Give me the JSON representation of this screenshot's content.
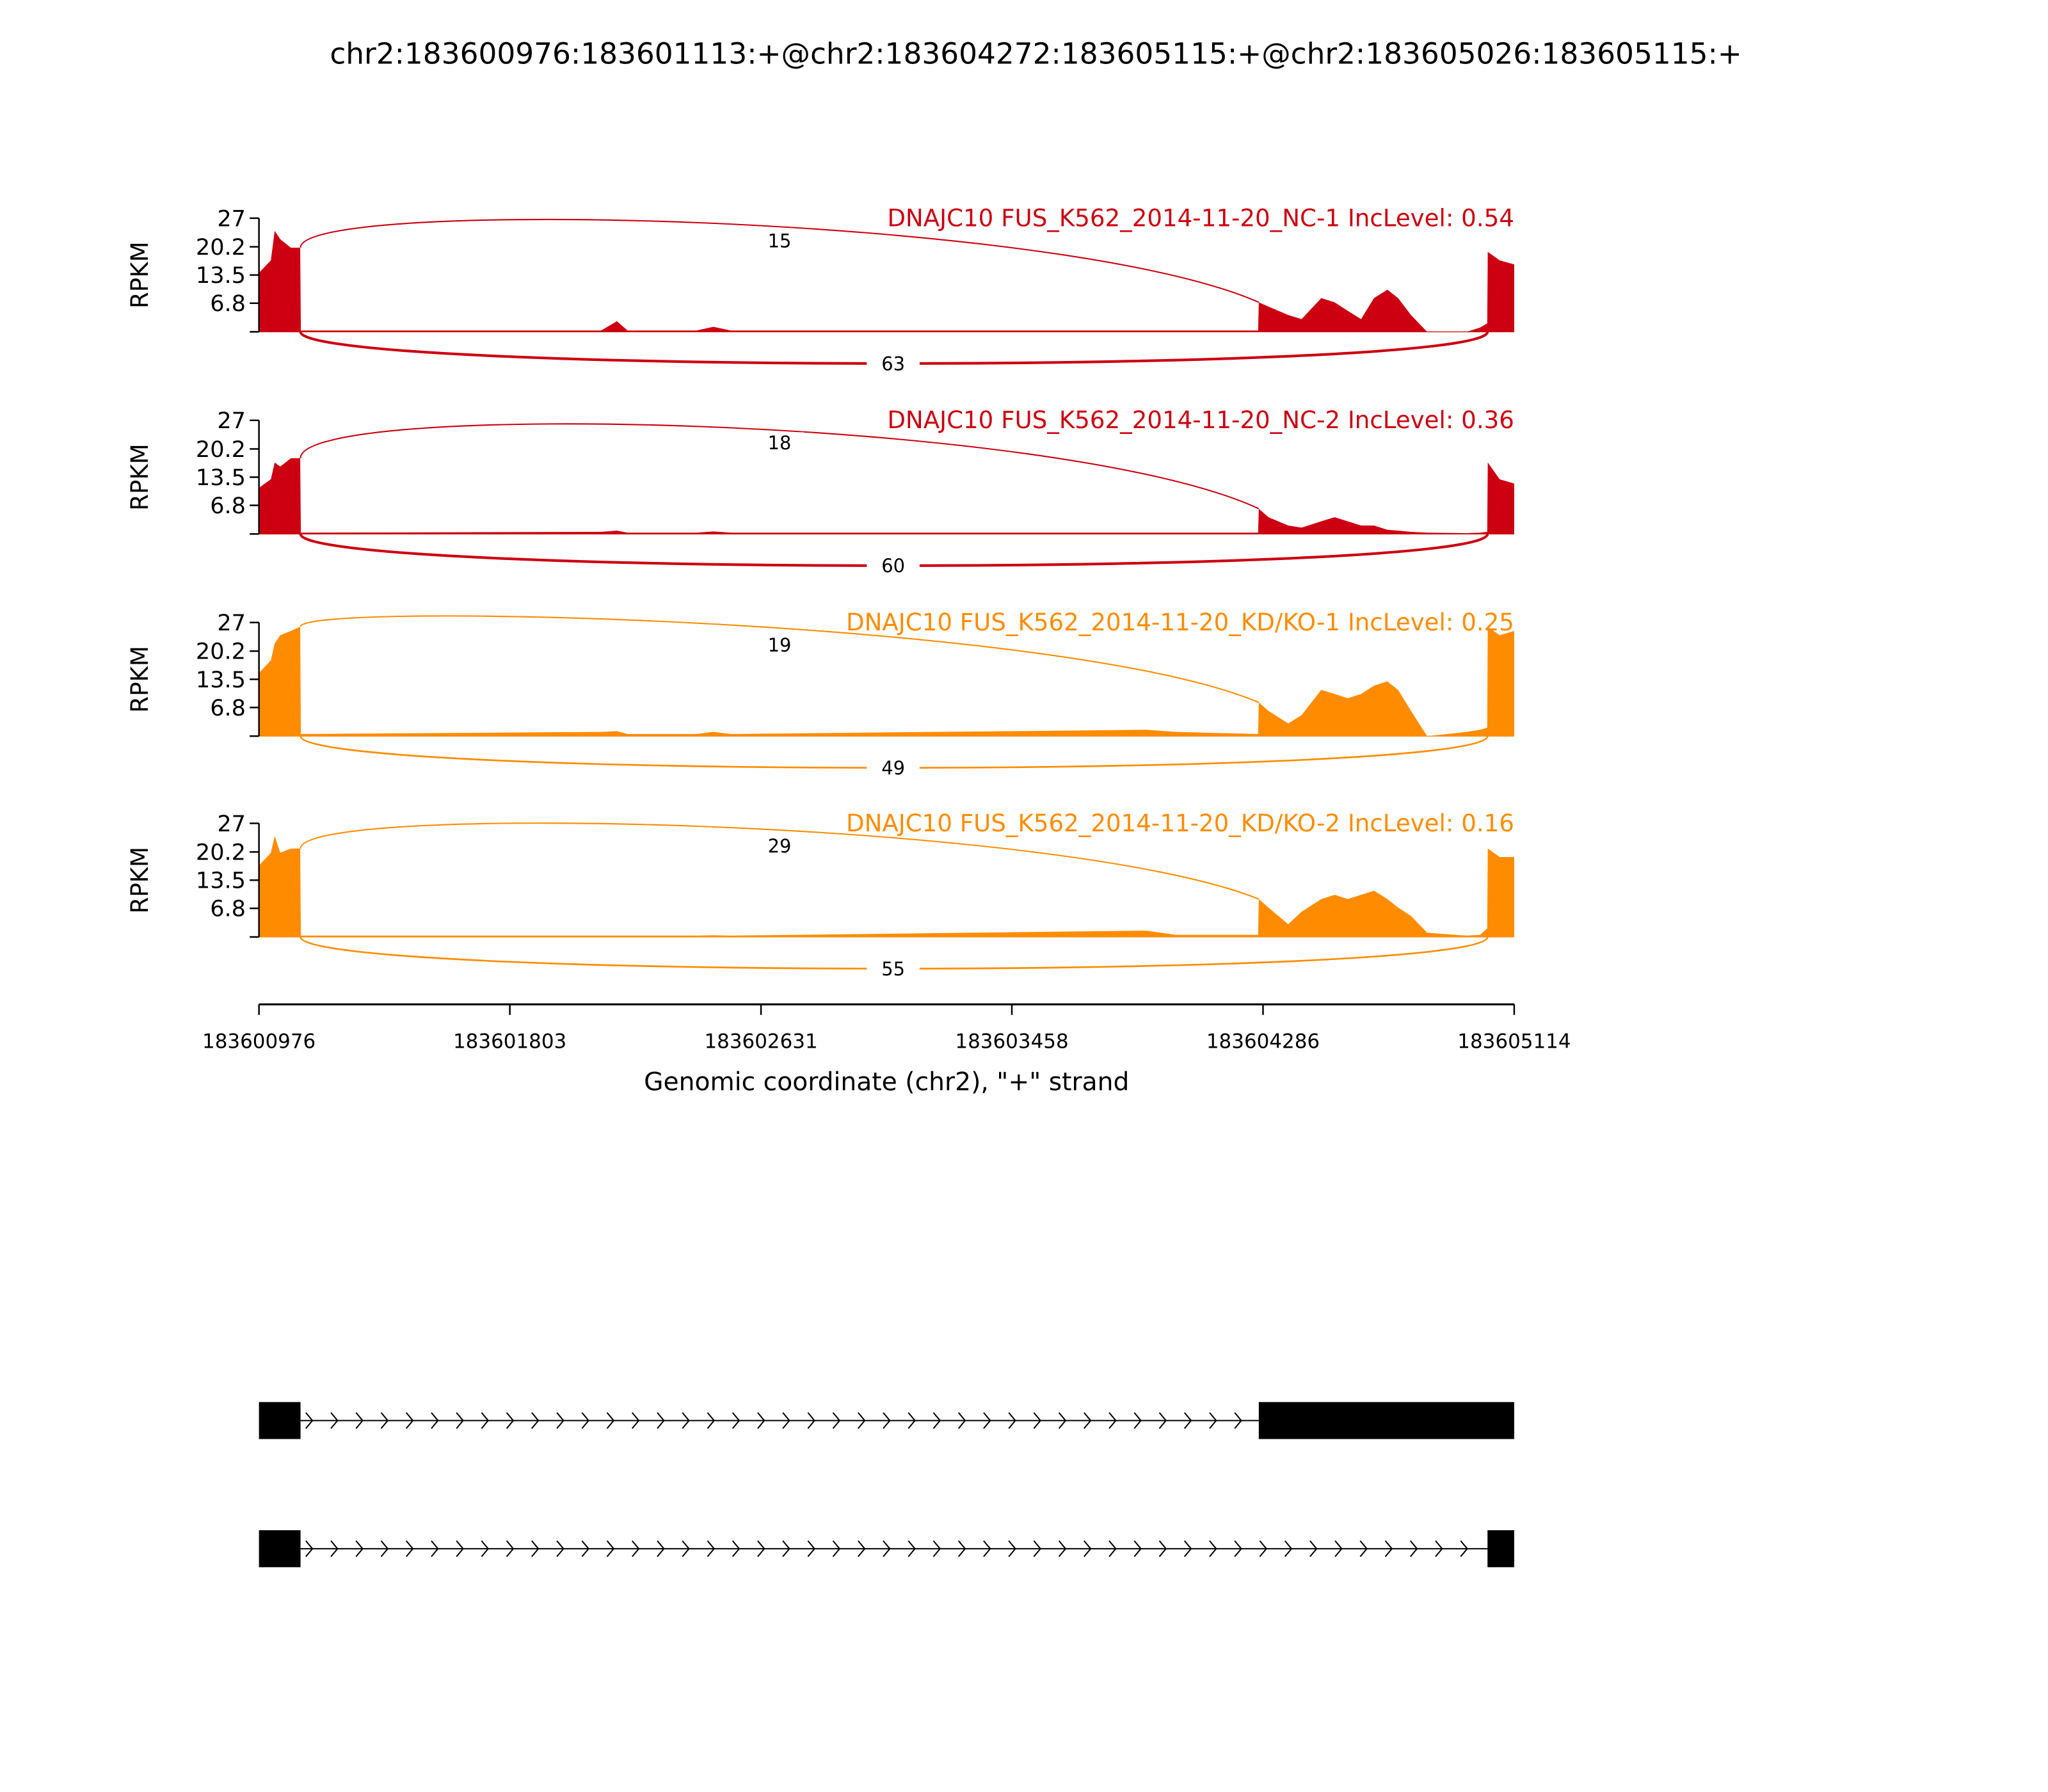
{
  "chart_data": {
    "type": "area",
    "title": "chr2:183600976:183601113:+@chr2:183604272:183605115:+@chr2:183605026:183605115:+",
    "xlabel": "Genomic coordinate (chr2), \"+\" strand",
    "ylabel": "RPKM",
    "xlim": [
      183600976,
      183605114
    ],
    "ylim": [
      0,
      27
    ],
    "yticks": [
      "6.8",
      "13.5",
      "20.2",
      "27"
    ],
    "ytick_values": [
      6.8,
      13.5,
      20.2,
      27
    ],
    "xticks": [
      "183600976",
      "183601803",
      "183602631",
      "183603458",
      "183604286",
      "183605114"
    ],
    "xtick_values": [
      183600976,
      183601803,
      183602631,
      183603458,
      183604286,
      183605114
    ],
    "exons": {
      "upstream": [
        183600976,
        183601113
      ],
      "target": [
        183604272,
        183605115
      ],
      "downstream": [
        183605026,
        183605115
      ]
    },
    "coverage_positions": [
      183600976,
      183601015,
      183601028,
      183601046,
      183601081,
      183601112,
      183601114,
      183602104,
      183602156,
      183602191,
      183602418,
      183602474,
      183602531,
      183603900,
      183604000,
      183604270,
      183604272,
      183604304,
      183604369,
      183604413,
      183604478,
      183604522,
      183604565,
      183604609,
      183604652,
      183604696,
      183604731,
      183604774,
      183604827,
      183604957,
      183605001,
      183605025,
      183605027,
      183605066,
      183605114
    ],
    "series": [
      {
        "name": "DNAJC10 FUS_K562_2014-11-20_NC-1 IncLevel: 0.54",
        "color": "#CC0011",
        "coverage": [
          14,
          17,
          24,
          22,
          20,
          20,
          0.3,
          0.3,
          2.5,
          0.3,
          0.3,
          1.2,
          0.3,
          0.3,
          0.3,
          0.3,
          7,
          6,
          4,
          3,
          8,
          7,
          5,
          3,
          8,
          10,
          8,
          4,
          0,
          0,
          1,
          2,
          19,
          17,
          16
        ],
        "inclusion_junction": "15",
        "skipping_junction": "63"
      },
      {
        "name": "DNAJC10 FUS_K562_2014-11-20_NC-2 IncLevel: 0.36",
        "color": "#CC0011",
        "coverage": [
          11,
          13,
          17,
          16,
          18,
          18,
          0.3,
          0.5,
          0.8,
          0.3,
          0.3,
          0.6,
          0.3,
          0.3,
          0.3,
          0.3,
          6,
          4,
          2,
          1.5,
          3,
          4,
          3,
          2,
          2,
          1,
          0.8,
          0.5,
          0.3,
          0.2,
          0.3,
          0.5,
          17,
          13,
          12
        ],
        "inclusion_junction": "18",
        "skipping_junction": "60"
      },
      {
        "name": "DNAJC10 FUS_K562_2014-11-20_KD/KO-1 IncLevel: 0.25",
        "color": "#FF8C00",
        "coverage": [
          15,
          18,
          22,
          24,
          25,
          26,
          0.5,
          1,
          1.2,
          0.5,
          0.5,
          1,
          0.5,
          1.5,
          1,
          0.5,
          8,
          6,
          3,
          5,
          11,
          10,
          9,
          10,
          12,
          13,
          11,
          6,
          0,
          1,
          1.5,
          2,
          26,
          24,
          25
        ],
        "inclusion_junction": "19",
        "skipping_junction": "49"
      },
      {
        "name": "DNAJC10 FUS_K562_2014-11-20_KD/KO-2 IncLevel: 0.16",
        "color": "#FF8C00",
        "coverage": [
          17,
          20,
          24,
          20,
          21,
          21,
          0.3,
          0.3,
          0.3,
          0.3,
          0.3,
          0.4,
          0.3,
          1.5,
          0.5,
          0.5,
          9,
          7,
          3,
          6,
          9,
          10,
          9,
          10,
          11,
          9,
          7,
          5,
          1,
          0.3,
          0.5,
          2,
          21,
          19,
          19
        ],
        "inclusion_junction": "29",
        "skipping_junction": "55"
      }
    ],
    "transcripts": [
      {
        "exons": [
          [
            183600976,
            183601113
          ],
          [
            183604272,
            183605115
          ]
        ]
      },
      {
        "exons": [
          [
            183600976,
            183601113
          ],
          [
            183605026,
            183605115
          ]
        ]
      }
    ]
  }
}
